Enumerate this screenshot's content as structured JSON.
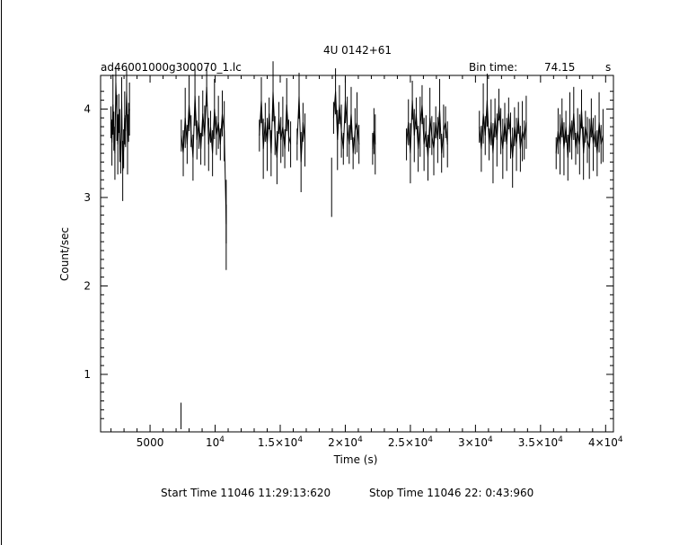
{
  "chart_data": {
    "type": "line",
    "title": "4U 0142+61",
    "file_label": "ad46001000g300070_1.lc",
    "bin_time_label": "Bin time:",
    "bin_time_value": "74.15",
    "bin_time_unit": "s",
    "xlabel": "Time (s)",
    "ylabel": "Count/sec",
    "xlim": [
      1200,
      40600
    ],
    "ylim": [
      0.35,
      4.38
    ],
    "x_ticks": [
      {
        "value": 5000,
        "label": "5000"
      },
      {
        "value": 10000,
        "label": "10⁴",
        "mantissa": "",
        "exp": "4"
      },
      {
        "value": 15000,
        "label": "1.5×10⁴",
        "mantissa": "1.5×",
        "exp": "4"
      },
      {
        "value": 20000,
        "label": "2×10⁴",
        "mantissa": "2×",
        "exp": "4"
      },
      {
        "value": 25000,
        "label": "2.5×10⁴",
        "mantissa": "2.5×",
        "exp": "4"
      },
      {
        "value": 30000,
        "label": "3×10⁴",
        "mantissa": "3×",
        "exp": "4"
      },
      {
        "value": 35000,
        "label": "3.5×10⁴",
        "mantissa": "3.5×",
        "exp": "4"
      },
      {
        "value": 40000,
        "label": "4×10⁴",
        "mantissa": "4×",
        "exp": "4"
      }
    ],
    "y_ticks": [
      {
        "value": 1,
        "label": "1"
      },
      {
        "value": 2,
        "label": "2"
      },
      {
        "value": 3,
        "label": "3"
      },
      {
        "value": 4,
        "label": "4"
      }
    ],
    "segments": [
      {
        "x": [
          2000,
          2070,
          2150,
          2220,
          2300,
          2370,
          2450,
          2520,
          2600,
          2670,
          2750,
          2820,
          2900,
          2970,
          3050,
          3120,
          3200,
          3270,
          3350,
          3420
        ],
        "y": [
          3.85,
          3.62,
          4.05,
          3.75,
          3.5,
          4.3,
          3.9,
          3.6,
          3.95,
          3.7,
          3.45,
          4.1,
          3.3,
          3.55,
          3.9,
          3.75,
          4.2,
          3.6,
          3.85,
          4.0
        ]
      },
      {
        "x": [
          7400,
          7550,
          7700,
          7850,
          8000,
          8150,
          8300,
          8450,
          8600,
          8750,
          8900,
          9050,
          9200,
          9350,
          9500,
          9650,
          9800,
          9950,
          10100,
          10250,
          10400,
          10550,
          10700,
          10850
        ],
        "y": [
          3.7,
          3.5,
          3.9,
          3.6,
          4.05,
          3.75,
          3.45,
          4.15,
          3.65,
          3.85,
          3.55,
          3.95,
          3.7,
          4.25,
          3.6,
          3.8,
          3.5,
          4.0,
          3.7,
          3.85,
          3.6,
          3.95,
          3.75,
          2.7
        ]
      },
      {
        "x": [
          13400,
          13550,
          13700,
          13850,
          14000,
          14150,
          14300,
          14450,
          14600,
          14750,
          14900,
          15050,
          15200,
          15350,
          15500,
          15650,
          15800
        ],
        "y": [
          3.7,
          4.1,
          3.55,
          3.85,
          3.6,
          3.95,
          3.5,
          4.2,
          3.7,
          3.45,
          3.9,
          3.65,
          3.8,
          3.55,
          4.05,
          3.7,
          3.6
        ]
      },
      {
        "x": [
          16300,
          16450,
          16600,
          16750,
          16900
        ],
        "y": [
          3.6,
          4.15,
          3.4,
          3.85,
          3.65
        ]
      },
      {
        "x": [
          19100,
          19250,
          19400,
          19550,
          19700,
          19850,
          20000,
          20150,
          20300,
          20450,
          20600,
          20750,
          20900,
          21050
        ],
        "y": [
          3.9,
          4.2,
          3.65,
          4.05,
          3.75,
          3.55,
          4.1,
          3.8,
          3.6,
          3.95,
          3.5,
          3.75,
          3.85,
          3.6
        ]
      },
      {
        "x": [
          22100,
          22200,
          22300
        ],
        "y": [
          3.55,
          3.75,
          3.6
        ]
      },
      {
        "x": [
          24700,
          24850,
          25000,
          25150,
          25300,
          25450,
          25600,
          25750,
          25900,
          26050,
          26200,
          26350,
          26500,
          26650,
          26800,
          26950,
          27100,
          27250,
          27400,
          27550,
          27700,
          27850
        ],
        "y": [
          3.6,
          3.85,
          3.5,
          4.1,
          3.7,
          3.95,
          3.55,
          3.8,
          4.05,
          3.6,
          3.75,
          3.45,
          3.9,
          3.7,
          3.55,
          3.85,
          3.65,
          4.0,
          3.5,
          3.75,
          3.85,
          3.6
        ]
      },
      {
        "x": [
          30300,
          30450,
          30600,
          30750,
          30900,
          31050,
          31200,
          31350,
          31500,
          31650,
          31800,
          31950,
          32100,
          32250,
          32400,
          32550,
          32700,
          32850,
          33000,
          33150,
          33300,
          33450,
          33600,
          33750,
          33900
        ],
        "y": [
          3.8,
          3.55,
          3.95,
          3.7,
          4.1,
          3.6,
          3.85,
          3.5,
          3.9,
          3.65,
          4.05,
          3.75,
          3.55,
          3.85,
          3.6,
          3.95,
          3.7,
          3.45,
          3.8,
          3.6,
          3.9,
          3.55,
          3.75,
          3.65,
          3.85
        ]
      },
      {
        "x": [
          36200,
          36350,
          36500,
          36650,
          36800,
          36950,
          37100,
          37250,
          37400,
          37550,
          37700,
          37850,
          38000,
          38150,
          38300,
          38450,
          38600,
          38750,
          38900,
          39050,
          39200,
          39350,
          39500,
          39650,
          39800
        ],
        "y": [
          3.5,
          3.75,
          3.6,
          3.9,
          3.55,
          3.8,
          3.45,
          3.85,
          3.65,
          3.95,
          3.55,
          3.75,
          3.6,
          4.0,
          3.5,
          3.8,
          3.65,
          3.55,
          3.9,
          3.6,
          3.75,
          3.5,
          3.85,
          3.6,
          3.7
        ]
      }
    ],
    "spikes": [
      {
        "x": 7380,
        "y0": 0.38,
        "y1": 0.68
      },
      {
        "x": 10850,
        "y0": 2.18,
        "y1": 3.2
      },
      {
        "x": 18950,
        "y0": 2.78,
        "y1": 3.45
      }
    ],
    "footer": {
      "start_label": "Start Time 11046 11:29:13:620",
      "stop_label": "Stop Time 11046 22: 0:43:960"
    }
  }
}
